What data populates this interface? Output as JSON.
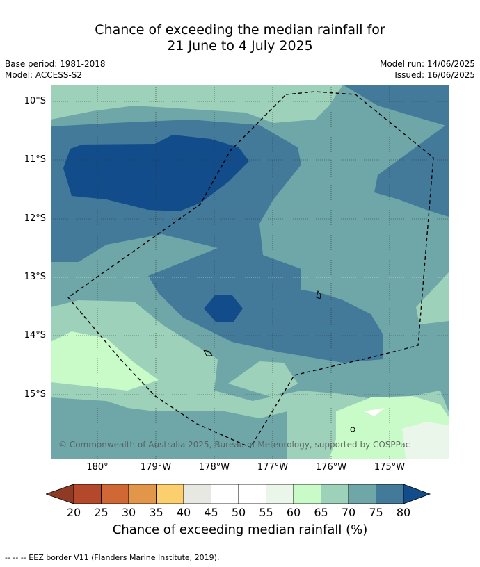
{
  "title_line1": "Chance of exceeding the median rainfall for",
  "title_line2": "21 June to 4 July 2025",
  "base_period": "Base period: 1981-2018",
  "model": "Model: ACCESS-S2",
  "model_run": "Model run: 14/06/2025",
  "issued": "Issued: 16/06/2025",
  "lat_labels": [
    "10°S",
    "11°S",
    "12°S",
    "13°S",
    "14°S",
    "15°S"
  ],
  "lon_labels": [
    "180°",
    "179°W",
    "178°W",
    "177°W",
    "176°W",
    "175°W"
  ],
  "copyright": "© Commonwealth of Australia 2025, Bureau of Meteorology, supported by COSPPac",
  "colorbar": {
    "title": "Chance of exceeding median rainfall (%)",
    "ticks": [
      "20",
      "25",
      "30",
      "35",
      "40",
      "45",
      "50",
      "55",
      "60",
      "65",
      "70",
      "75",
      "80"
    ],
    "colors": [
      "#8e3a25",
      "#b4482a",
      "#cf6835",
      "#e2964a",
      "#fccf6e",
      "#e8e8e3",
      "#ffffff",
      "#ffffff",
      "#eaf6ea",
      "#c8fbc8",
      "#9dd1b9",
      "#6fa7a9",
      "#437a9a",
      "#134c8b"
    ]
  },
  "footer": "--  --  -- EEZ border V11 (Flanders Marine Institute, 2019).",
  "colors": {
    "c55_60": "#eaf6ea",
    "c60_65": "#c8fbc8",
    "c65_70": "#9dd1b9",
    "c70_75": "#6fa7a9",
    "c75_80": "#437a9a",
    "c80": "#134c8b"
  }
}
